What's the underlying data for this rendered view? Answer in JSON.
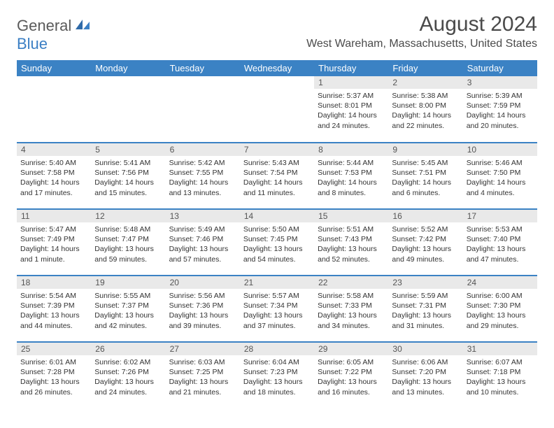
{
  "logo": {
    "part1": "General",
    "part2": "Blue"
  },
  "title": "August 2024",
  "location": "West Wareham, Massachusetts, United States",
  "colors": {
    "header_bg": "#3b82c4",
    "header_text": "#ffffff",
    "daynum_bg": "#e9e9e9",
    "row_border": "#3b82c4",
    "logo_gray": "#5a5a5a",
    "logo_blue": "#3b7fc4",
    "text": "#333333"
  },
  "weekdays": [
    "Sunday",
    "Monday",
    "Tuesday",
    "Wednesday",
    "Thursday",
    "Friday",
    "Saturday"
  ],
  "weeks": [
    [
      null,
      null,
      null,
      null,
      {
        "n": "1",
        "sr": "5:37 AM",
        "ss": "8:01 PM",
        "dl1": "Daylight: 14 hours",
        "dl2": "and 24 minutes."
      },
      {
        "n": "2",
        "sr": "5:38 AM",
        "ss": "8:00 PM",
        "dl1": "Daylight: 14 hours",
        "dl2": "and 22 minutes."
      },
      {
        "n": "3",
        "sr": "5:39 AM",
        "ss": "7:59 PM",
        "dl1": "Daylight: 14 hours",
        "dl2": "and 20 minutes."
      }
    ],
    [
      {
        "n": "4",
        "sr": "5:40 AM",
        "ss": "7:58 PM",
        "dl1": "Daylight: 14 hours",
        "dl2": "and 17 minutes."
      },
      {
        "n": "5",
        "sr": "5:41 AM",
        "ss": "7:56 PM",
        "dl1": "Daylight: 14 hours",
        "dl2": "and 15 minutes."
      },
      {
        "n": "6",
        "sr": "5:42 AM",
        "ss": "7:55 PM",
        "dl1": "Daylight: 14 hours",
        "dl2": "and 13 minutes."
      },
      {
        "n": "7",
        "sr": "5:43 AM",
        "ss": "7:54 PM",
        "dl1": "Daylight: 14 hours",
        "dl2": "and 11 minutes."
      },
      {
        "n": "8",
        "sr": "5:44 AM",
        "ss": "7:53 PM",
        "dl1": "Daylight: 14 hours",
        "dl2": "and 8 minutes."
      },
      {
        "n": "9",
        "sr": "5:45 AM",
        "ss": "7:51 PM",
        "dl1": "Daylight: 14 hours",
        "dl2": "and 6 minutes."
      },
      {
        "n": "10",
        "sr": "5:46 AM",
        "ss": "7:50 PM",
        "dl1": "Daylight: 14 hours",
        "dl2": "and 4 minutes."
      }
    ],
    [
      {
        "n": "11",
        "sr": "5:47 AM",
        "ss": "7:49 PM",
        "dl1": "Daylight: 14 hours",
        "dl2": "and 1 minute."
      },
      {
        "n": "12",
        "sr": "5:48 AM",
        "ss": "7:47 PM",
        "dl1": "Daylight: 13 hours",
        "dl2": "and 59 minutes."
      },
      {
        "n": "13",
        "sr": "5:49 AM",
        "ss": "7:46 PM",
        "dl1": "Daylight: 13 hours",
        "dl2": "and 57 minutes."
      },
      {
        "n": "14",
        "sr": "5:50 AM",
        "ss": "7:45 PM",
        "dl1": "Daylight: 13 hours",
        "dl2": "and 54 minutes."
      },
      {
        "n": "15",
        "sr": "5:51 AM",
        "ss": "7:43 PM",
        "dl1": "Daylight: 13 hours",
        "dl2": "and 52 minutes."
      },
      {
        "n": "16",
        "sr": "5:52 AM",
        "ss": "7:42 PM",
        "dl1": "Daylight: 13 hours",
        "dl2": "and 49 minutes."
      },
      {
        "n": "17",
        "sr": "5:53 AM",
        "ss": "7:40 PM",
        "dl1": "Daylight: 13 hours",
        "dl2": "and 47 minutes."
      }
    ],
    [
      {
        "n": "18",
        "sr": "5:54 AM",
        "ss": "7:39 PM",
        "dl1": "Daylight: 13 hours",
        "dl2": "and 44 minutes."
      },
      {
        "n": "19",
        "sr": "5:55 AM",
        "ss": "7:37 PM",
        "dl1": "Daylight: 13 hours",
        "dl2": "and 42 minutes."
      },
      {
        "n": "20",
        "sr": "5:56 AM",
        "ss": "7:36 PM",
        "dl1": "Daylight: 13 hours",
        "dl2": "and 39 minutes."
      },
      {
        "n": "21",
        "sr": "5:57 AM",
        "ss": "7:34 PM",
        "dl1": "Daylight: 13 hours",
        "dl2": "and 37 minutes."
      },
      {
        "n": "22",
        "sr": "5:58 AM",
        "ss": "7:33 PM",
        "dl1": "Daylight: 13 hours",
        "dl2": "and 34 minutes."
      },
      {
        "n": "23",
        "sr": "5:59 AM",
        "ss": "7:31 PM",
        "dl1": "Daylight: 13 hours",
        "dl2": "and 31 minutes."
      },
      {
        "n": "24",
        "sr": "6:00 AM",
        "ss": "7:30 PM",
        "dl1": "Daylight: 13 hours",
        "dl2": "and 29 minutes."
      }
    ],
    [
      {
        "n": "25",
        "sr": "6:01 AM",
        "ss": "7:28 PM",
        "dl1": "Daylight: 13 hours",
        "dl2": "and 26 minutes."
      },
      {
        "n": "26",
        "sr": "6:02 AM",
        "ss": "7:26 PM",
        "dl1": "Daylight: 13 hours",
        "dl2": "and 24 minutes."
      },
      {
        "n": "27",
        "sr": "6:03 AM",
        "ss": "7:25 PM",
        "dl1": "Daylight: 13 hours",
        "dl2": "and 21 minutes."
      },
      {
        "n": "28",
        "sr": "6:04 AM",
        "ss": "7:23 PM",
        "dl1": "Daylight: 13 hours",
        "dl2": "and 18 minutes."
      },
      {
        "n": "29",
        "sr": "6:05 AM",
        "ss": "7:22 PM",
        "dl1": "Daylight: 13 hours",
        "dl2": "and 16 minutes."
      },
      {
        "n": "30",
        "sr": "6:06 AM",
        "ss": "7:20 PM",
        "dl1": "Daylight: 13 hours",
        "dl2": "and 13 minutes."
      },
      {
        "n": "31",
        "sr": "6:07 AM",
        "ss": "7:18 PM",
        "dl1": "Daylight: 13 hours",
        "dl2": "and 10 minutes."
      }
    ]
  ],
  "labels": {
    "sunrise": "Sunrise:",
    "sunset": "Sunset:"
  }
}
